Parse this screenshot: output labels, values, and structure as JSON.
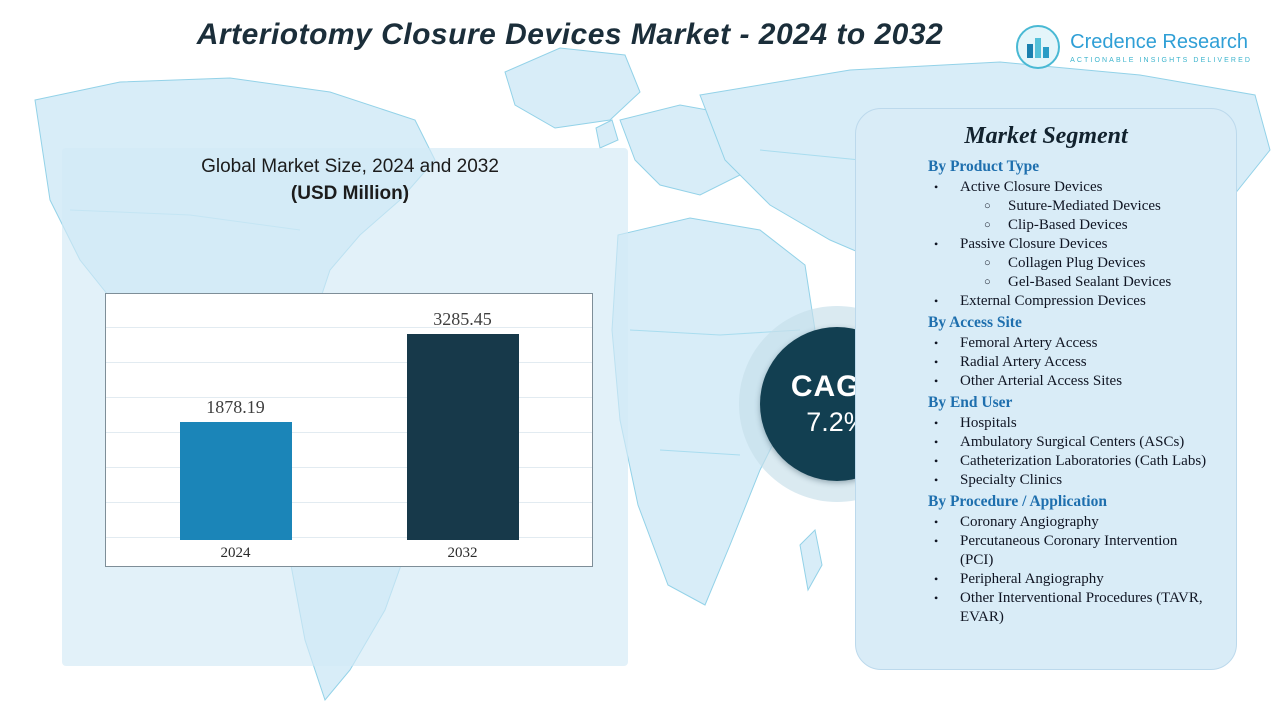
{
  "title": "Arteriotomy Closure Devices Market - 2024 to 2032",
  "logo": {
    "name": "Credence Research",
    "tagline": "Actionable Insights Delivered"
  },
  "chart": {
    "title_line1": "Global Market Size, 2024 and 2032",
    "title_line2": "(USD Million)"
  },
  "chart_data": {
    "type": "bar",
    "categories": [
      "2024",
      "2032"
    ],
    "values": [
      1878.19,
      3285.45
    ],
    "title": "Global Market Size, 2024 and 2032 (USD Million)",
    "xlabel": "",
    "ylabel": "USD Million",
    "ylim": [
      0,
      3500
    ],
    "grid": true,
    "legend": false,
    "bar_colors": [
      "#1b85b8",
      "#17394a"
    ]
  },
  "cagr": {
    "label": "CAGR",
    "value": "7.2%"
  },
  "segments": {
    "heading": "Market Segment",
    "groups": [
      {
        "heading": "By Product Type",
        "items": [
          {
            "label": "Active Closure Devices",
            "level": 1
          },
          {
            "label": "Suture-Mediated Devices",
            "level": 2
          },
          {
            "label": "Clip-Based Devices",
            "level": 2
          },
          {
            "label": "Passive Closure Devices",
            "level": 1
          },
          {
            "label": "Collagen Plug Devices",
            "level": 2
          },
          {
            "label": "Gel-Based Sealant Devices",
            "level": 2
          },
          {
            "label": "External Compression Devices",
            "level": 1
          }
        ]
      },
      {
        "heading": "By Access Site",
        "items": [
          {
            "label": "Femoral Artery Access",
            "level": 1
          },
          {
            "label": "Radial Artery Access",
            "level": 1
          },
          {
            "label": "Other Arterial Access Sites",
            "level": 1
          }
        ]
      },
      {
        "heading": "By End User",
        "items": [
          {
            "label": "Hospitals",
            "level": 1
          },
          {
            "label": "Ambulatory Surgical Centers (ASCs)",
            "level": 1
          },
          {
            "label": "Catheterization Laboratories (Cath Labs)",
            "level": 1
          },
          {
            "label": "Specialty Clinics",
            "level": 1
          }
        ]
      },
      {
        "heading": "By Procedure / Application",
        "items": [
          {
            "label": "Coronary Angiography",
            "level": 1
          },
          {
            "label": "Percutaneous Coronary Intervention (PCI)",
            "level": 1
          },
          {
            "label": "Peripheral Angiography",
            "level": 1
          },
          {
            "label": "Other Interventional Procedures (TAVR, EVAR)",
            "level": 1
          }
        ]
      }
    ]
  },
  "colors": {
    "title_text": "#1b2e3a",
    "panel_bg": "#d9ecf7",
    "section_heading": "#1e6fae",
    "cagr_circle": "#123f51",
    "map_fill": "#d8edf8",
    "map_stroke": "#93d2e8"
  }
}
